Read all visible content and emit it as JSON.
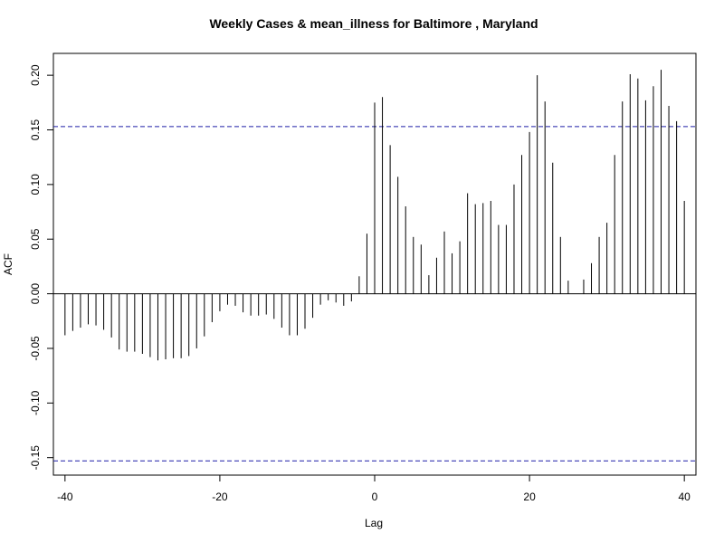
{
  "chart_data": {
    "type": "bar",
    "title": "Weekly Cases & mean_illness for Baltimore , Maryland",
    "xlabel": "Lag",
    "ylabel": "ACF",
    "xlim": [
      -41.5,
      41.5
    ],
    "ylim": [
      -0.166,
      0.22
    ],
    "x_ticks": [
      -40,
      -20,
      0,
      20,
      40
    ],
    "x_tick_labels": [
      "-40",
      "-20",
      "0",
      "20",
      "40"
    ],
    "y_ticks": [
      -0.15,
      -0.1,
      -0.05,
      0,
      0.05,
      0.1,
      0.15,
      0.2
    ],
    "y_tick_labels": [
      "-0.15",
      "-0.10",
      "-0.05",
      "0.00",
      "0.05",
      "0.10",
      "0.15",
      "0.20"
    ],
    "confidence_bound": 0.153,
    "lags": [
      -40,
      -39,
      -38,
      -37,
      -36,
      -35,
      -34,
      -33,
      -32,
      -31,
      -30,
      -29,
      -28,
      -27,
      -26,
      -25,
      -24,
      -23,
      -22,
      -21,
      -20,
      -19,
      -18,
      -17,
      -16,
      -15,
      -14,
      -13,
      -12,
      -11,
      -10,
      -9,
      -8,
      -7,
      -6,
      -5,
      -4,
      -3,
      -2,
      -1,
      0,
      1,
      2,
      3,
      4,
      5,
      6,
      7,
      8,
      9,
      10,
      11,
      12,
      13,
      14,
      15,
      16,
      17,
      18,
      19,
      20,
      21,
      22,
      23,
      24,
      25,
      26,
      27,
      28,
      29,
      30,
      31,
      32,
      33,
      34,
      35,
      36,
      37,
      38,
      39,
      40
    ],
    "acf": [
      -0.038,
      -0.034,
      -0.031,
      -0.028,
      -0.029,
      -0.033,
      -0.04,
      -0.051,
      -0.053,
      -0.053,
      -0.055,
      -0.058,
      -0.061,
      -0.06,
      -0.059,
      -0.059,
      -0.057,
      -0.05,
      -0.039,
      -0.026,
      -0.016,
      -0.01,
      -0.011,
      -0.017,
      -0.02,
      -0.02,
      -0.019,
      -0.023,
      -0.031,
      -0.038,
      -0.038,
      -0.032,
      -0.022,
      -0.01,
      -0.006,
      -0.008,
      -0.011,
      -0.007,
      0.016,
      0.055,
      0.175,
      0.18,
      0.136,
      0.107,
      0.08,
      0.052,
      0.045,
      0.017,
      0.033,
      0.057,
      0.037,
      0.048,
      0.092,
      0.082,
      0.083,
      0.085,
      0.063,
      0.063,
      0.1,
      0.127,
      0.148,
      0.2,
      0.176,
      0.12,
      0.052,
      0.012,
      0.0,
      0.013,
      0.028,
      0.052,
      0.065,
      0.127,
      0.176,
      0.201,
      0.197,
      0.177,
      0.19,
      0.205,
      0.172,
      0.158,
      0.085
    ]
  }
}
